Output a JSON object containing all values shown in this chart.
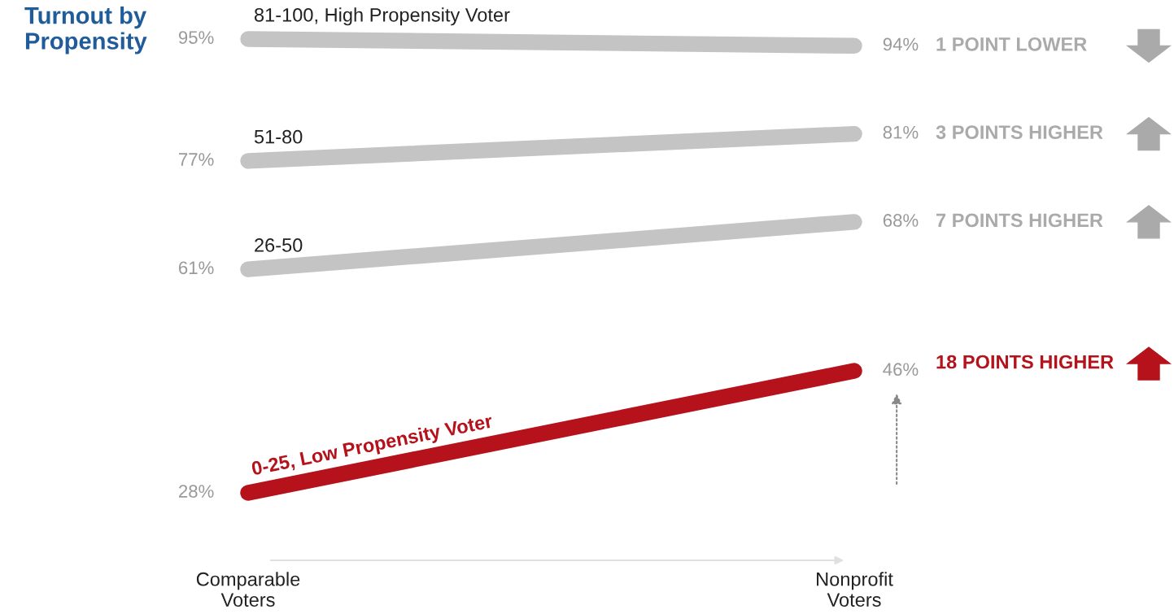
{
  "chart_data": {
    "type": "line",
    "title": "Turnout by\nPropensity",
    "categories": [
      "Comparable\nVoters",
      "Nonprofit\nVoters"
    ],
    "series": [
      {
        "name": "81-100, High Propensity Voter",
        "color": "#c4c4c4",
        "values": [
          95,
          94
        ],
        "value_labels": [
          "95%",
          "94%"
        ]
      },
      {
        "name": "51-80",
        "color": "#c4c4c4",
        "values": [
          77,
          81
        ],
        "value_labels": [
          "77%",
          "81%"
        ]
      },
      {
        "name": "26-50",
        "color": "#c4c4c4",
        "values": [
          61,
          68
        ],
        "value_labels": [
          "61%",
          "68%"
        ]
      },
      {
        "name": "0-25, Low Propensity Voter",
        "color": "#b5121b",
        "values": [
          28,
          46
        ],
        "value_labels": [
          "28%",
          "46%"
        ]
      }
    ],
    "annotations": [
      "1 POINT LOWER",
      "3 POINTS HIGHER",
      "7 POINTS HIGHER",
      "18 POINTS HIGHER"
    ],
    "tick_labels": "x",
    "grid": false,
    "legend": false,
    "line_style": "solid"
  }
}
